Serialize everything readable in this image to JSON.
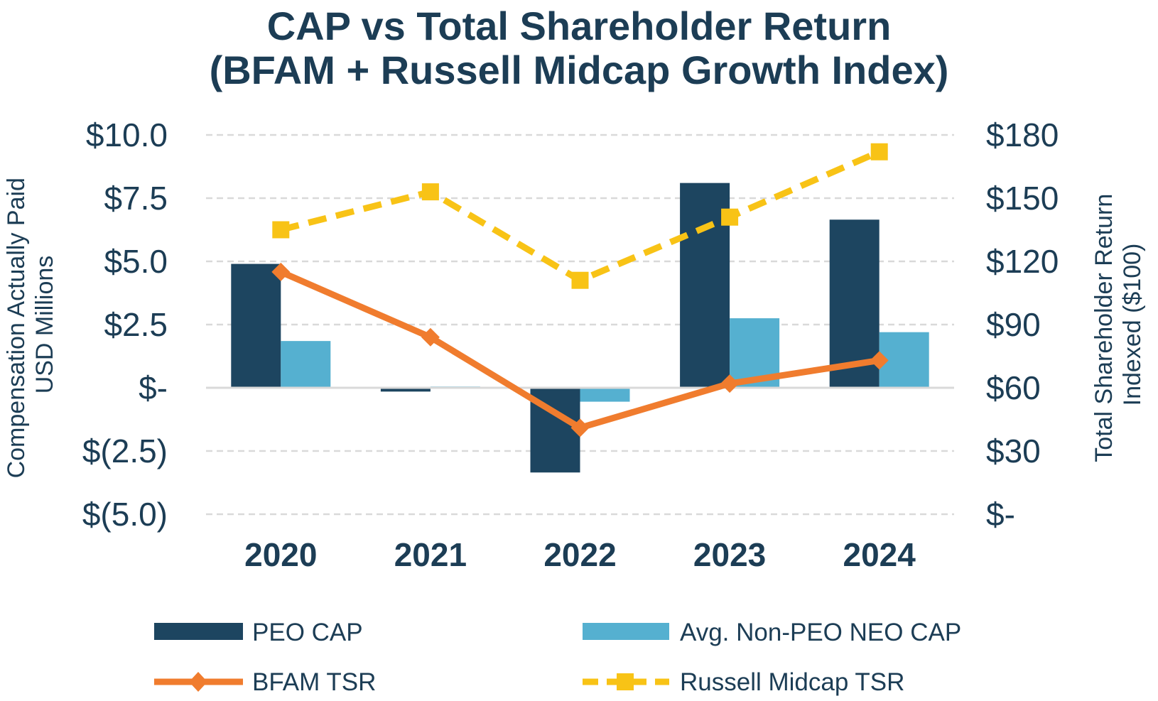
{
  "chart_data": {
    "type": "bar",
    "title": "CAP vs Total Shareholder Return",
    "subtitle": "(BFAM + Russell Midcap Growth Index)",
    "categories": [
      "2020",
      "2021",
      "2022",
      "2023",
      "2024"
    ],
    "left_axis": {
      "label_line1": "Compensation Actually Paid",
      "label_line2": "USD Millions",
      "ylim": [
        -5,
        10
      ],
      "ticks": [
        10,
        7.5,
        5,
        2.5,
        0,
        -2.5,
        -5
      ],
      "tick_labels": [
        "$10.0",
        "$7.5",
        "$5.0",
        "$2.5",
        "$-",
        "$(2.5)",
        "$(5.0)"
      ]
    },
    "right_axis": {
      "label_line1": "Total Shareholder Return",
      "label_line2": "Indexed ($100)",
      "ylim": [
        0,
        180
      ],
      "ticks": [
        180,
        150,
        120,
        90,
        60,
        30,
        0
      ],
      "tick_labels": [
        "$180",
        "$150",
        "$120",
        "$90",
        "$60",
        "$30",
        "$-"
      ]
    },
    "series": [
      {
        "name": "PEO CAP",
        "type": "bar",
        "axis": "left",
        "color": "#1d4560",
        "values": [
          4.9,
          -0.15,
          -3.35,
          8.1,
          6.65
        ]
      },
      {
        "name": "Avg. Non-PEO NEO CAP",
        "type": "bar",
        "axis": "left",
        "color": "#55b0d0",
        "values": [
          1.85,
          0.05,
          -0.55,
          2.75,
          2.2
        ]
      },
      {
        "name": "BFAM TSR",
        "type": "line",
        "axis": "right",
        "color": "#f07c2e",
        "marker": "diamond",
        "values": [
          115,
          84,
          41,
          62,
          73
        ]
      },
      {
        "name": "Russell Midcap TSR",
        "type": "line",
        "axis": "right",
        "color": "#f8c316",
        "dashed": true,
        "marker": "square",
        "values": [
          135,
          153,
          111,
          141,
          172
        ]
      }
    ],
    "grid": true,
    "legend": "bottom"
  }
}
